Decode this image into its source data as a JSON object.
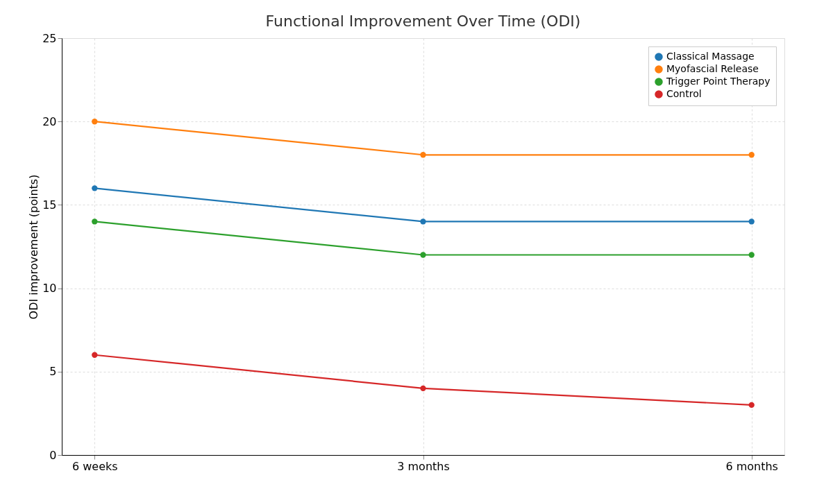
{
  "chart_data": {
    "type": "line",
    "title": "Functional Improvement Over Time (ODI)",
    "ylabel": "ODI improvement (points)",
    "categories": [
      "6 weeks",
      "3 months",
      "6 months"
    ],
    "series": [
      {
        "name": "Classical Massage",
        "color": "#1f77b4",
        "values": [
          16,
          14,
          14
        ]
      },
      {
        "name": "Myofascial Release",
        "color": "#ff7f0e",
        "values": [
          20,
          18,
          18
        ]
      },
      {
        "name": "Trigger Point Therapy",
        "color": "#2ca02c",
        "values": [
          14,
          12,
          12
        ]
      },
      {
        "name": "Control",
        "color": "#d62728",
        "values": [
          6,
          4,
          3
        ]
      }
    ],
    "ylim": [
      0,
      25
    ],
    "yticks": [
      0,
      5,
      10,
      15,
      20,
      25
    ],
    "grid": true,
    "legend": "top right",
    "marker": "circle",
    "line_style": "solid"
  }
}
